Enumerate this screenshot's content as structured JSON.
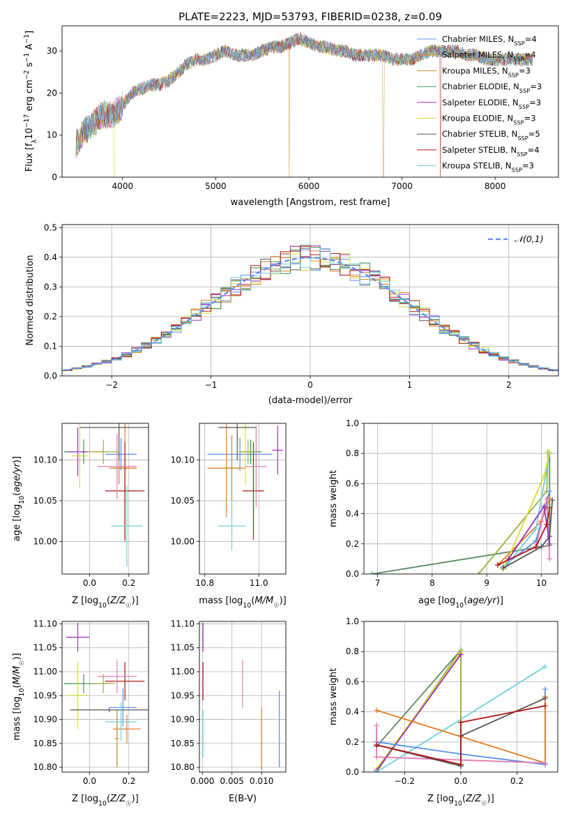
{
  "figure": {
    "title": "PLATE=2223, MJD=53793, FIBERID=0238, z=0.09"
  },
  "colors": {
    "Chabrier MILES": "#5b8def",
    "Salpeter MILES": "#e67a22",
    "Kroupa MILES": "#c4881d",
    "Chabrier ELODIE": "#3f8f4f",
    "Salpeter ELODIE": "#9b2fbf",
    "Kroupa ELODIE": "#d8dd3a",
    "Chabrier STELIB": "#555555",
    "Salpeter STELIB": "#b01515",
    "Kroupa STELIB": "#6fd0dc",
    "pink": "#e07ab0",
    "olive": "#9bb03a",
    "sage": "#5a8a60",
    "normal": "#5b8def"
  },
  "chart_data": [
    {
      "id": "spectrum",
      "type": "line",
      "xlabel": "wavelength [Angstrom, rest frame]",
      "ylabel": "Flux [f_λ 10^-17 erg cm^-2 s^-1 A^-1]",
      "ylabel_parts": [
        "Flux [f",
        "λ",
        "10",
        "−17",
        " erg cm",
        "−2",
        " s",
        "−1",
        " A",
        "−1",
        "]"
      ],
      "xlim": [
        3350,
        8680
      ],
      "ylim": [
        0,
        36
      ],
      "xticks": [
        4000,
        5000,
        6000,
        7000,
        8000
      ],
      "yticks": [
        0,
        10,
        20,
        30
      ],
      "grid": false,
      "legend_position": "right",
      "envelope": {
        "x": [
          3500,
          3600,
          3700,
          3800,
          3900,
          4000,
          4100,
          4200,
          4300,
          4400,
          4500,
          4600,
          4700,
          4800,
          4900,
          5000,
          5100,
          5200,
          5300,
          5400,
          5500,
          5600,
          5700,
          5800,
          5900,
          6000,
          6100,
          6200,
          6300,
          6400,
          6500,
          6600,
          6700,
          6800,
          6900,
          7000,
          7100,
          7200,
          7300,
          7400,
          7500,
          7600,
          7700,
          7800,
          7900,
          8000,
          8100,
          8200,
          8300,
          8400
        ],
        "y": [
          8,
          11,
          13,
          15,
          15,
          17,
          20,
          21,
          22,
          22,
          23,
          25,
          27,
          28,
          28,
          29,
          30,
          29,
          29,
          29,
          30,
          31,
          31,
          32,
          33,
          32,
          31,
          31,
          30,
          30,
          29,
          29,
          29,
          29,
          28,
          28,
          28,
          29,
          30,
          30,
          30,
          30,
          29,
          29,
          28,
          28,
          28,
          28,
          28,
          28
        ]
      },
      "series": [
        {
          "name": "Chabrier MILES",
          "label": "Chabrier MILES, N",
          "sub": "SSP",
          "count": "=4"
        },
        {
          "name": "Salpeter MILES",
          "label": "Salpeter MILES, N",
          "sub": "SSP",
          "count": "=4"
        },
        {
          "name": "Kroupa MILES",
          "label": "Kroupa MILES, N",
          "sub": "SSP",
          "count": "=3"
        },
        {
          "name": "Chabrier ELODIE",
          "label": "Chabrier ELODIE, N",
          "sub": "SSP",
          "count": "=3"
        },
        {
          "name": "Salpeter ELODIE",
          "label": "Salpeter ELODIE, N",
          "sub": "SSP",
          "count": "=3"
        },
        {
          "name": "Kroupa ELODIE",
          "label": "Kroupa ELODIE, N",
          "sub": "SSP",
          "count": "=3"
        },
        {
          "name": "Chabrier STELIB",
          "label": "Chabrier STELIB, N",
          "sub": "SSP",
          "count": "=5"
        },
        {
          "name": "Salpeter STELIB",
          "label": "Salpeter STELIB, N",
          "sub": "SSP",
          "count": "=4"
        },
        {
          "name": "Kroupa STELIB",
          "label": "Kroupa STELIB, N",
          "sub": "SSP",
          "count": "=3"
        }
      ]
    },
    {
      "id": "residuals",
      "type": "bar",
      "xlabel": "(data-model)/error",
      "ylabel": "Normed distribution",
      "xlim": [
        -2.5,
        2.5
      ],
      "ylim": [
        0,
        0.51
      ],
      "xticks": [
        -2,
        -1,
        0,
        1,
        2
      ],
      "yticks": [
        0.0,
        0.1,
        0.2,
        0.3,
        0.4,
        0.5
      ],
      "grid": true,
      "legend_position": "top-right",
      "bin_width": 0.1,
      "reference_label": "𝒩(0,1)"
    },
    {
      "id": "age_vs_Z",
      "type": "scatter",
      "xlabel": "Z [log10(Z/Z☉)]",
      "xlabel_parts": [
        "Z [log",
        "10",
        "(",
        "Z/Z",
        "☉",
        ")]"
      ],
      "ylabel": "age [log10(age/yr)]",
      "ylabel_parts": [
        "age  [log",
        "10",
        "(",
        "age/yr",
        ")]"
      ],
      "xlim": [
        -0.14,
        0.3
      ],
      "ylim": [
        9.96,
        10.145
      ],
      "xticks": [
        0.0,
        0.2
      ],
      "yticks": [
        10.0,
        10.05,
        10.1
      ],
      "grid": true,
      "points": [
        {
          "c": "Chabrier MILES",
          "x": 0.16,
          "xe": 0.08,
          "y": 10.107,
          "ye": 0.02
        },
        {
          "c": "Salpeter MILES",
          "x": 0.18,
          "xe": 0.06,
          "y": 10.09,
          "ye": 0.09
        },
        {
          "c": "Kroupa MILES",
          "x": 0.15,
          "xe": 0.05,
          "y": 10.09,
          "ye": 0.02
        },
        {
          "c": "Chabrier ELODIE",
          "x": -0.03,
          "xe": 0.1,
          "y": 10.11,
          "ye": 0.015
        },
        {
          "c": "Salpeter ELODIE",
          "x": -0.06,
          "xe": 0.05,
          "y": 10.11,
          "ye": 0.03
        },
        {
          "c": "Kroupa ELODIE",
          "x": -0.05,
          "xe": 0.04,
          "y": 10.105,
          "ye": 0.04
        },
        {
          "c": "Chabrier STELIB",
          "x": 0.15,
          "xe": 0.2,
          "y": 10.14,
          "ye": 0.04
        },
        {
          "c": "Salpeter STELIB",
          "x": 0.18,
          "xe": 0.1,
          "y": 10.062,
          "ye": 0.06
        },
        {
          "c": "Kroupa STELIB",
          "x": 0.19,
          "xe": 0.08,
          "y": 10.019,
          "ye": 0.05
        },
        {
          "c": "pink",
          "x": 0.14,
          "xe": 0.1,
          "y": 10.092,
          "ye": 0.04
        },
        {
          "c": "olive",
          "x": 0.07,
          "xe": 0.08,
          "y": 10.11,
          "ye": 0.015
        }
      ]
    },
    {
      "id": "age_vs_mass",
      "type": "scatter",
      "xlabel": "mass [log10(M/M☉)]",
      "xlabel_parts": [
        "mass [log",
        "10",
        "(",
        "M/M",
        "☉",
        ")]"
      ],
      "ylabel": "",
      "xlim": [
        10.78,
        11.1
      ],
      "ylim": [
        9.96,
        10.145
      ],
      "xticks": [
        10.8,
        11.0
      ],
      "yticks": [
        10.0,
        10.05,
        10.1
      ],
      "grid": true,
      "points": [
        {
          "c": "Chabrier MILES",
          "x": 10.93,
          "xe": 0.12,
          "y": 10.107,
          "ye": 0.02
        },
        {
          "c": "Salpeter MILES",
          "x": 10.88,
          "xe": 0.07,
          "y": 10.09,
          "ye": 0.06
        },
        {
          "c": "Kroupa MILES",
          "x": 10.9,
          "xe": 0.03,
          "y": 10.09,
          "ye": 0.04
        },
        {
          "c": "Chabrier ELODIE",
          "x": 10.97,
          "xe": 0.04,
          "y": 10.11,
          "ye": 0.015
        },
        {
          "c": "Salpeter ELODIE",
          "x": 11.07,
          "xe": 0.02,
          "y": 10.112,
          "ye": 0.03
        },
        {
          "c": "Kroupa ELODIE",
          "x": 10.95,
          "xe": 0.03,
          "y": 10.11,
          "ye": 0.04
        },
        {
          "c": "Chabrier STELIB",
          "x": 10.92,
          "xe": 0.07,
          "y": 10.14,
          "ye": 0.04
        },
        {
          "c": "Salpeter STELIB",
          "x": 10.98,
          "xe": 0.04,
          "y": 10.062,
          "ye": 0.06
        },
        {
          "c": "Kroupa STELIB",
          "x": 10.9,
          "xe": 0.05,
          "y": 10.019,
          "ye": 0.03
        },
        {
          "c": "pink",
          "x": 10.99,
          "xe": 0.04,
          "y": 10.092,
          "ye": 0.05
        },
        {
          "c": "olive",
          "x": 10.96,
          "xe": 0.03,
          "y": 10.11,
          "ye": 0.015
        }
      ]
    },
    {
      "id": "weight_vs_age",
      "type": "line",
      "xlabel": "age  [log10(age/yr)]",
      "xlabel_parts": [
        "age  [log",
        "10",
        "(",
        "age/yr",
        ")]"
      ],
      "ylabel": "mass weight",
      "xlim": [
        6.75,
        10.3
      ],
      "ylim": [
        0,
        1.0
      ],
      "xticks": [
        7,
        8,
        9,
        10
      ],
      "yticks": [
        0.0,
        0.2,
        0.4,
        0.6,
        0.8,
        1.0
      ],
      "grid": true,
      "series": [
        {
          "c": "sage",
          "x": [
            6.9,
            10.15,
            10.15
          ],
          "y": [
            0.0,
            0.19,
            0.8
          ]
        },
        {
          "c": "olive",
          "x": [
            8.85,
            10.1,
            10.12
          ],
          "y": [
            0.0,
            0.55,
            0.81
          ]
        },
        {
          "c": "Chabrier MILES",
          "x": [
            9.3,
            9.9,
            10.15
          ],
          "y": [
            0.05,
            0.22,
            0.55
          ]
        },
        {
          "c": "Salpeter MILES",
          "x": [
            9.2,
            10.0,
            10.15
          ],
          "y": [
            0.06,
            0.35,
            0.5
          ]
        },
        {
          "c": "Kroupa STELIB",
          "x": [
            9.35,
            9.9,
            10.15
          ],
          "y": [
            0.05,
            0.3,
            0.8
          ]
        },
        {
          "c": "Kroupa ELODIE",
          "x": [
            9.3,
            10.05,
            10.15
          ],
          "y": [
            0.03,
            0.65,
            0.81
          ]
        },
        {
          "c": "pink",
          "x": [
            9.9,
            10.1,
            10.15
          ],
          "y": [
            0.18,
            0.5,
            0.1
          ]
        },
        {
          "c": "Chabrier STELIB",
          "x": [
            9.3,
            10.0,
            10.15,
            10.2
          ],
          "y": [
            0.04,
            0.18,
            0.25,
            0.49
          ]
        },
        {
          "c": "Salpeter ELODIE",
          "x": [
            9.4,
            10.05,
            10.15
          ],
          "y": [
            0.1,
            0.45,
            0.2
          ]
        },
        {
          "c": "Salpeter STELIB",
          "x": [
            9.2,
            9.9,
            10.1,
            10.15
          ],
          "y": [
            0.06,
            0.18,
            0.33,
            0.44
          ]
        }
      ]
    },
    {
      "id": "mass_vs_Z",
      "type": "scatter",
      "xlabel": "Z [log10(Z/Z☉)]",
      "xlabel_parts": [
        "Z [log",
        "10",
        "(",
        "Z/Z",
        "☉",
        ")]"
      ],
      "ylabel": "mass [log10(M/M☉)]",
      "ylabel_parts": [
        "mass [log",
        "10",
        "(",
        "M/M",
        "☉",
        ")]"
      ],
      "xlim": [
        -0.14,
        0.3
      ],
      "ylim": [
        10.79,
        11.105
      ],
      "xticks": [
        0.0,
        0.2
      ],
      "yticks": [
        10.8,
        10.85,
        10.9,
        10.95,
        11.0,
        11.05,
        11.1
      ],
      "grid": true,
      "points": [
        {
          "c": "Chabrier MILES",
          "x": 0.17,
          "xe": 0.07,
          "y": 10.925,
          "ye": 0.04
        },
        {
          "c": "Salpeter MILES",
          "x": 0.19,
          "xe": 0.07,
          "y": 10.88,
          "ye": 0.03
        },
        {
          "c": "Kroupa MILES",
          "x": 0.14,
          "xe": 0.01,
          "y": 10.86,
          "ye": 0.06
        },
        {
          "c": "Chabrier ELODIE",
          "x": -0.03,
          "xe": 0.1,
          "y": 10.975,
          "ye": 0.02
        },
        {
          "c": "Salpeter ELODIE",
          "x": -0.06,
          "xe": 0.06,
          "y": 11.072,
          "ye": 0.03
        },
        {
          "c": "Kroupa ELODIE",
          "x": -0.06,
          "xe": 0.05,
          "y": 10.95,
          "ye": 0.07
        },
        {
          "c": "Chabrier STELIB",
          "x": 0.1,
          "xe": 0.2,
          "y": 10.92,
          "ye": 0.005
        },
        {
          "c": "Salpeter STELIB",
          "x": 0.18,
          "xe": 0.1,
          "y": 10.98,
          "ye": 0.04
        },
        {
          "c": "Kroupa STELIB",
          "x": 0.16,
          "xe": 0.08,
          "y": 10.895,
          "ye": 0.04
        },
        {
          "c": "pink",
          "x": 0.14,
          "xe": 0.1,
          "y": 10.99,
          "ye": 0.035
        },
        {
          "c": "olive",
          "x": 0.07,
          "xe": 0.06,
          "y": 10.975,
          "ye": 0.02
        }
      ]
    },
    {
      "id": "mass_vs_EBV",
      "type": "scatter",
      "xlabel": "E(B-V)",
      "ylabel": "",
      "xlim": [
        -0.0005,
        0.0141
      ],
      "ylim": [
        10.79,
        11.105
      ],
      "xticks": [
        0.0,
        0.005,
        0.01
      ],
      "xtick_labels": [
        "0.000",
        "0.005",
        "0.010"
      ],
      "yticks": [
        10.8,
        10.85,
        10.9,
        10.95,
        11.0,
        11.05,
        11.1
      ],
      "grid": true,
      "points": [
        {
          "c": "Chabrier MILES",
          "x": 0.013,
          "xe": 0,
          "y": 10.88,
          "ye": 0.08
        },
        {
          "c": "Salpeter MILES",
          "x": 0.01,
          "xe": 0,
          "y": 10.86,
          "ye": 0.065
        },
        {
          "c": "pink",
          "x": 0.0068,
          "xe": 0,
          "y": 10.975,
          "ye": 0.05
        },
        {
          "c": "Salpeter ELODIE",
          "x": 0.0001,
          "xe": 0,
          "y": 11.072,
          "ye": 0.03
        },
        {
          "c": "Salpeter STELIB",
          "x": 0.0001,
          "xe": 0,
          "y": 10.98,
          "ye": 0.04
        },
        {
          "c": "Kroupa STELIB",
          "x": 0.0001,
          "xe": 0,
          "y": 10.87,
          "ye": 0.05
        }
      ]
    },
    {
      "id": "weight_vs_Z",
      "type": "line",
      "xlabel": "Z [log10(Z/Z☉)]",
      "xlabel_parts": [
        "Z [log",
        "10",
        "(",
        "Z/Z",
        "☉",
        ")]"
      ],
      "ylabel": "mass weight",
      "xlim": [
        -0.345,
        0.345
      ],
      "ylim": [
        0,
        1.0
      ],
      "xticks": [
        -0.2,
        0.0,
        0.2
      ],
      "yticks": [
        0.0,
        0.2,
        0.4,
        0.6,
        0.8,
        1.0
      ],
      "grid": true,
      "series": [
        {
          "c": "sage",
          "x": [
            -0.3,
            0.0,
            0.0
          ],
          "y": [
            0.17,
            0.81,
            0.05
          ]
        },
        {
          "c": "olive",
          "x": [
            -0.3,
            0.0,
            0.0
          ],
          "y": [
            0.0,
            0.81,
            0.04
          ]
        },
        {
          "c": "Kroupa ELODIE",
          "x": [
            -0.3,
            0.0
          ],
          "y": [
            0.02,
            0.79
          ]
        },
        {
          "c": "Salpeter ELODIE",
          "x": [
            -0.3,
            0.0
          ],
          "y": [
            0.01,
            0.78
          ]
        },
        {
          "c": "Kroupa STELIB",
          "x": [
            -0.3,
            0.3
          ],
          "y": [
            0.0,
            0.7
          ]
        },
        {
          "c": "Chabrier MILES",
          "x": [
            -0.3,
            0.0,
            0.3,
            0.3
          ],
          "y": [
            0.2,
            0.12,
            0.05,
            0.55
          ]
        },
        {
          "c": "Salpeter MILES",
          "x": [
            -0.3,
            0.3,
            0.3
          ],
          "y": [
            0.41,
            0.06,
            0.5
          ]
        },
        {
          "c": "pink",
          "x": [
            -0.3,
            -0.3,
            0.3
          ],
          "y": [
            0.31,
            0.1,
            0.06
          ]
        },
        {
          "c": "Chabrier STELIB",
          "x": [
            -0.3,
            0.0,
            0.0,
            0.3
          ],
          "y": [
            0.18,
            0.04,
            0.24,
            0.49
          ]
        },
        {
          "c": "Salpeter STELIB",
          "x": [
            -0.3,
            0.0,
            0.0,
            0.3
          ],
          "y": [
            0.18,
            0.05,
            0.33,
            0.44
          ]
        }
      ]
    }
  ]
}
